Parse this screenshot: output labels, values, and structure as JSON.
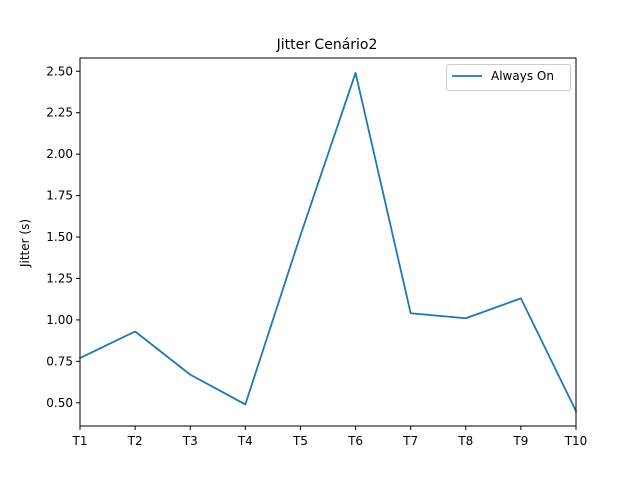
{
  "chart_data": {
    "type": "line",
    "title": "Jitter Cenário2",
    "xlabel": "",
    "ylabel": "Jitter (s)",
    "categories": [
      "T1",
      "T2",
      "T3",
      "T4",
      "T5",
      "T6",
      "T7",
      "T8",
      "T9",
      "T10"
    ],
    "series": [
      {
        "name": "Always On",
        "color": "#1f77b4",
        "values": [
          0.77,
          0.93,
          0.67,
          0.49,
          1.51,
          2.49,
          1.04,
          1.01,
          1.13,
          0.45
        ]
      }
    ],
    "ylim": [
      0.36,
      2.58
    ],
    "yticks": [
      "0.50",
      "0.75",
      "1.00",
      "1.25",
      "1.50",
      "1.75",
      "2.00",
      "2.25",
      "2.50"
    ],
    "grid": false,
    "legend_position": "top-right"
  }
}
